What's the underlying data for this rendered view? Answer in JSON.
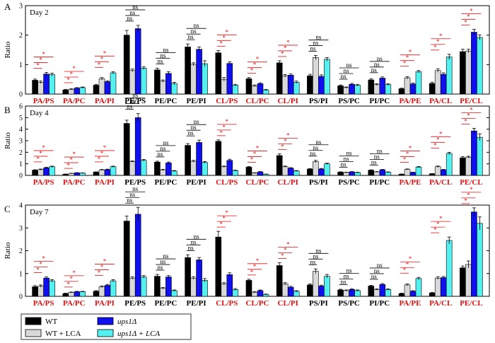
{
  "colors": {
    "WT": "#000000",
    "WT_LCA": "#d9d9d9",
    "ups1": "#1010ee",
    "ups1_LCA": "#55f0f0",
    "red": "#e01010",
    "black": "#000000"
  },
  "legend": [
    {
      "key": "WT",
      "label": "WT",
      "italic": false
    },
    {
      "key": "ups1",
      "label": "ups1Δ",
      "italic": true
    },
    {
      "key": "WT_LCA",
      "label": "WT + LCA",
      "italic": false
    },
    {
      "key": "ups1_LCA",
      "label": "ups1Δ + LCA",
      "italic": true
    }
  ],
  "chart_data": [
    {
      "type": "bar",
      "panel": "A",
      "title": "Day 2",
      "ylabel": "Ratio",
      "ylim": [
        0,
        3
      ],
      "yticks": [
        0,
        1,
        2,
        3
      ],
      "categories": [
        "PA/PS",
        "PA/PC",
        "PA/PI",
        "PE/PS",
        "PE/PC",
        "PE/PI",
        "CL/PS",
        "CL/PC",
        "CL/PI",
        "PS/PI",
        "PS/PC",
        "PI/PC",
        "PA/PE",
        "PA/CL",
        "PE/CL"
      ],
      "category_colors": [
        "red",
        "red",
        "red",
        "black",
        "black",
        "black",
        "red",
        "red",
        "red",
        "black",
        "black",
        "black",
        "red",
        "red",
        "red"
      ],
      "series": [
        {
          "name": "WT",
          "values": [
            0.47,
            0.14,
            0.3,
            2.0,
            0.82,
            1.6,
            1.4,
            0.52,
            1.06,
            0.62,
            0.28,
            0.48,
            0.18,
            0.36,
            1.44
          ]
        },
        {
          "name": "WT + LCA",
          "values": [
            0.4,
            0.16,
            0.52,
            0.8,
            0.44,
            1.01,
            0.5,
            0.28,
            0.62,
            1.24,
            0.22,
            0.32,
            0.55,
            0.8,
            1.46
          ]
        },
        {
          "name": "ups1Δ",
          "values": [
            0.68,
            0.2,
            0.42,
            2.22,
            0.7,
            1.52,
            1.04,
            0.35,
            0.64,
            0.6,
            0.33,
            0.54,
            0.34,
            0.67,
            2.1
          ]
        },
        {
          "name": "ups1Δ + LCA",
          "values": [
            0.66,
            0.22,
            0.72,
            0.88,
            0.36,
            1.03,
            0.3,
            0.14,
            0.4,
            1.18,
            0.3,
            0.32,
            0.76,
            1.26,
            1.92
          ]
        }
      ],
      "errors": [
        [
          0.04,
          0.02,
          0.03,
          0.16,
          0.06,
          0.1,
          0.08,
          0.04,
          0.07,
          0.05,
          0.03,
          0.04,
          0.02,
          0.04,
          0.08
        ],
        [
          0.04,
          0.02,
          0.04,
          0.05,
          0.04,
          0.05,
          0.06,
          0.03,
          0.04,
          0.07,
          0.02,
          0.03,
          0.04,
          0.06,
          0.06
        ],
        [
          0.05,
          0.02,
          0.03,
          0.11,
          0.06,
          0.08,
          0.05,
          0.03,
          0.04,
          0.05,
          0.03,
          0.04,
          0.03,
          0.05,
          0.1
        ],
        [
          0.05,
          0.02,
          0.04,
          0.05,
          0.04,
          0.1,
          0.03,
          0.02,
          0.04,
          0.06,
          0.03,
          0.03,
          0.04,
          0.09,
          0.09
        ]
      ],
      "sig": [
        [
          "*",
          "*",
          "*"
        ],
        [
          "*",
          "*",
          "*"
        ],
        [
          "*",
          "*",
          "*"
        ],
        [
          "ns",
          "ns",
          "ns"
        ],
        [
          "ns",
          "ns",
          "ns"
        ],
        [
          "ns",
          "ns",
          "ns"
        ],
        [
          "*",
          "*",
          "*"
        ],
        [
          "*",
          "*",
          "*"
        ],
        [
          "*",
          "*",
          "*"
        ],
        [
          "ns",
          "ns",
          "ns"
        ],
        [
          "ns",
          "ns",
          "ns"
        ],
        [
          "ns",
          "ns",
          "ns"
        ],
        [
          "*",
          "*",
          "*"
        ],
        [
          "*",
          "*",
          "*"
        ],
        [
          "*",
          "*",
          "*"
        ]
      ]
    },
    {
      "type": "bar",
      "panel": "B",
      "title": "Day 4",
      "ylabel": "Ratio",
      "ylim": [
        0,
        6
      ],
      "yticks": [
        0,
        1,
        2,
        3,
        4,
        5,
        6
      ],
      "categories": [
        "PA/PS",
        "PA/PC",
        "PA/PI",
        "PE/PS",
        "PE/PC",
        "PE/PI",
        "CL/PS",
        "CL/PC",
        "CL/PI",
        "PS/PI",
        "PS/PC",
        "PI/PC",
        "PA/PE",
        "PA/CL",
        "PE/CL"
      ],
      "category_colors": [
        "red",
        "red",
        "red",
        "black",
        "black",
        "black",
        "red",
        "red",
        "red",
        "black",
        "black",
        "black",
        "red",
        "red",
        "red"
      ],
      "series": [
        {
          "name": "WT",
          "values": [
            0.45,
            0.1,
            0.28,
            4.5,
            1.15,
            2.6,
            2.95,
            0.72,
            1.72,
            0.55,
            0.28,
            0.45,
            0.1,
            0.14,
            1.52
          ]
        },
        {
          "name": "WT + LCA",
          "values": [
            0.5,
            0.17,
            0.48,
            1.2,
            0.48,
            1.22,
            0.75,
            0.2,
            0.75,
            1.2,
            0.25,
            0.3,
            0.52,
            0.75,
            1.58
          ]
        },
        {
          "name": "ups1Δ",
          "values": [
            0.65,
            0.22,
            0.5,
            5.0,
            1.08,
            2.85,
            1.3,
            0.3,
            0.62,
            0.55,
            0.3,
            0.48,
            0.25,
            0.48,
            3.85
          ]
        },
        {
          "name": "ups1Δ + LCA",
          "values": [
            0.75,
            0.2,
            0.75,
            1.3,
            0.38,
            1.12,
            0.42,
            0.1,
            0.38,
            1.0,
            0.25,
            0.28,
            0.72,
            1.9,
            3.3
          ]
        }
      ],
      "errors": [
        [
          0.04,
          0.02,
          0.03,
          0.28,
          0.08,
          0.15,
          0.12,
          0.05,
          0.14,
          0.04,
          0.03,
          0.03,
          0.02,
          0.02,
          0.1
        ],
        [
          0.05,
          0.02,
          0.04,
          0.06,
          0.05,
          0.08,
          0.06,
          0.03,
          0.06,
          0.1,
          0.03,
          0.03,
          0.04,
          0.06,
          0.08
        ],
        [
          0.05,
          0.02,
          0.04,
          0.35,
          0.08,
          0.2,
          0.1,
          0.03,
          0.05,
          0.05,
          0.03,
          0.04,
          0.03,
          0.04,
          0.22
        ],
        [
          0.05,
          0.02,
          0.05,
          0.08,
          0.04,
          0.08,
          0.04,
          0.02,
          0.04,
          0.06,
          0.03,
          0.03,
          0.05,
          0.1,
          0.3
        ]
      ],
      "sig": [
        [
          "*",
          "*",
          "*"
        ],
        [
          "*",
          "*",
          "*"
        ],
        [
          "*",
          "*",
          "*"
        ],
        [
          "ns",
          "ns",
          "ns"
        ],
        [
          "ns",
          "ns",
          "ns"
        ],
        [
          "ns",
          "ns",
          "ns"
        ],
        [
          "*",
          "*",
          "*"
        ],
        [
          "*",
          "*",
          "*"
        ],
        [
          "*",
          "*",
          "*"
        ],
        [
          "ns",
          "ns",
          "ns"
        ],
        [
          "ns",
          "ns",
          "ns"
        ],
        [
          "ns",
          "ns",
          "ns"
        ],
        [
          "*",
          "*",
          "*"
        ],
        [
          "*",
          "*",
          "*"
        ],
        [
          "*",
          "*",
          "*"
        ]
      ]
    },
    {
      "type": "bar",
      "panel": "C",
      "title": "Day 7",
      "ylabel": "Ratio",
      "ylim": [
        0,
        4
      ],
      "yticks": [
        0,
        1,
        2,
        3,
        4
      ],
      "categories": [
        "PA/PS",
        "PA/PC",
        "PA/PI",
        "PE/PS",
        "PE/PC",
        "PE/PI",
        "CL/PS",
        "CL/PC",
        "CL/PI",
        "PS/PI",
        "PS/PC",
        "PI/PC",
        "PA/PE",
        "PA/CL",
        "PE/CL"
      ],
      "category_colors": [
        "red",
        "red",
        "red",
        "black",
        "black",
        "black",
        "red",
        "red",
        "red",
        "black",
        "black",
        "black",
        "red",
        "red",
        "red"
      ],
      "series": [
        {
          "name": "WT",
          "values": [
            0.42,
            0.12,
            0.22,
            3.3,
            0.88,
            1.7,
            2.6,
            0.7,
            1.35,
            0.5,
            0.28,
            0.45,
            0.12,
            0.15,
            1.25
          ]
        },
        {
          "name": "WT + LCA",
          "values": [
            0.45,
            0.17,
            0.42,
            0.8,
            0.35,
            0.8,
            0.55,
            0.18,
            0.55,
            1.1,
            0.25,
            0.3,
            0.5,
            0.8,
            1.4
          ]
        },
        {
          "name": "ups1Δ",
          "values": [
            0.8,
            0.2,
            0.48,
            3.6,
            0.85,
            1.6,
            0.95,
            0.25,
            0.4,
            0.45,
            0.3,
            0.52,
            0.22,
            0.82,
            3.7
          ]
        },
        {
          "name": "ups1Δ + LCA",
          "values": [
            0.68,
            0.2,
            0.68,
            0.85,
            0.25,
            0.7,
            0.3,
            0.08,
            0.22,
            0.88,
            0.25,
            0.3,
            0.78,
            2.45,
            3.2
          ]
        }
      ],
      "errors": [
        [
          0.05,
          0.02,
          0.03,
          0.22,
          0.08,
          0.12,
          0.25,
          0.05,
          0.12,
          0.04,
          0.03,
          0.03,
          0.02,
          0.02,
          0.08
        ],
        [
          0.05,
          0.02,
          0.04,
          0.06,
          0.04,
          0.06,
          0.05,
          0.03,
          0.05,
          0.1,
          0.03,
          0.03,
          0.04,
          0.06,
          0.15
        ],
        [
          0.05,
          0.02,
          0.04,
          0.3,
          0.06,
          0.1,
          0.08,
          0.03,
          0.04,
          0.04,
          0.03,
          0.04,
          0.03,
          0.05,
          0.18
        ],
        [
          0.05,
          0.02,
          0.05,
          0.06,
          0.03,
          0.08,
          0.04,
          0.02,
          0.03,
          0.08,
          0.03,
          0.03,
          0.05,
          0.15,
          0.28
        ]
      ],
      "sig": [
        [
          "*",
          "*",
          "*"
        ],
        [
          "*",
          "*",
          "*"
        ],
        [
          "*",
          "*",
          "*"
        ],
        [
          "ns",
          "ns",
          "ns"
        ],
        [
          "ns",
          "ns",
          "ns"
        ],
        [
          "ns",
          "ns",
          "ns"
        ],
        [
          "*",
          "*",
          "*"
        ],
        [
          "*",
          "*",
          "*"
        ],
        [
          "*",
          "*",
          "*"
        ],
        [
          "ns",
          "ns",
          "ns"
        ],
        [
          "ns",
          "ns",
          "ns"
        ],
        [
          "ns",
          "ns",
          "ns"
        ],
        [
          "*",
          "*",
          "*"
        ],
        [
          "*",
          "*",
          "*"
        ],
        [
          "*",
          "*",
          "*"
        ]
      ]
    }
  ]
}
